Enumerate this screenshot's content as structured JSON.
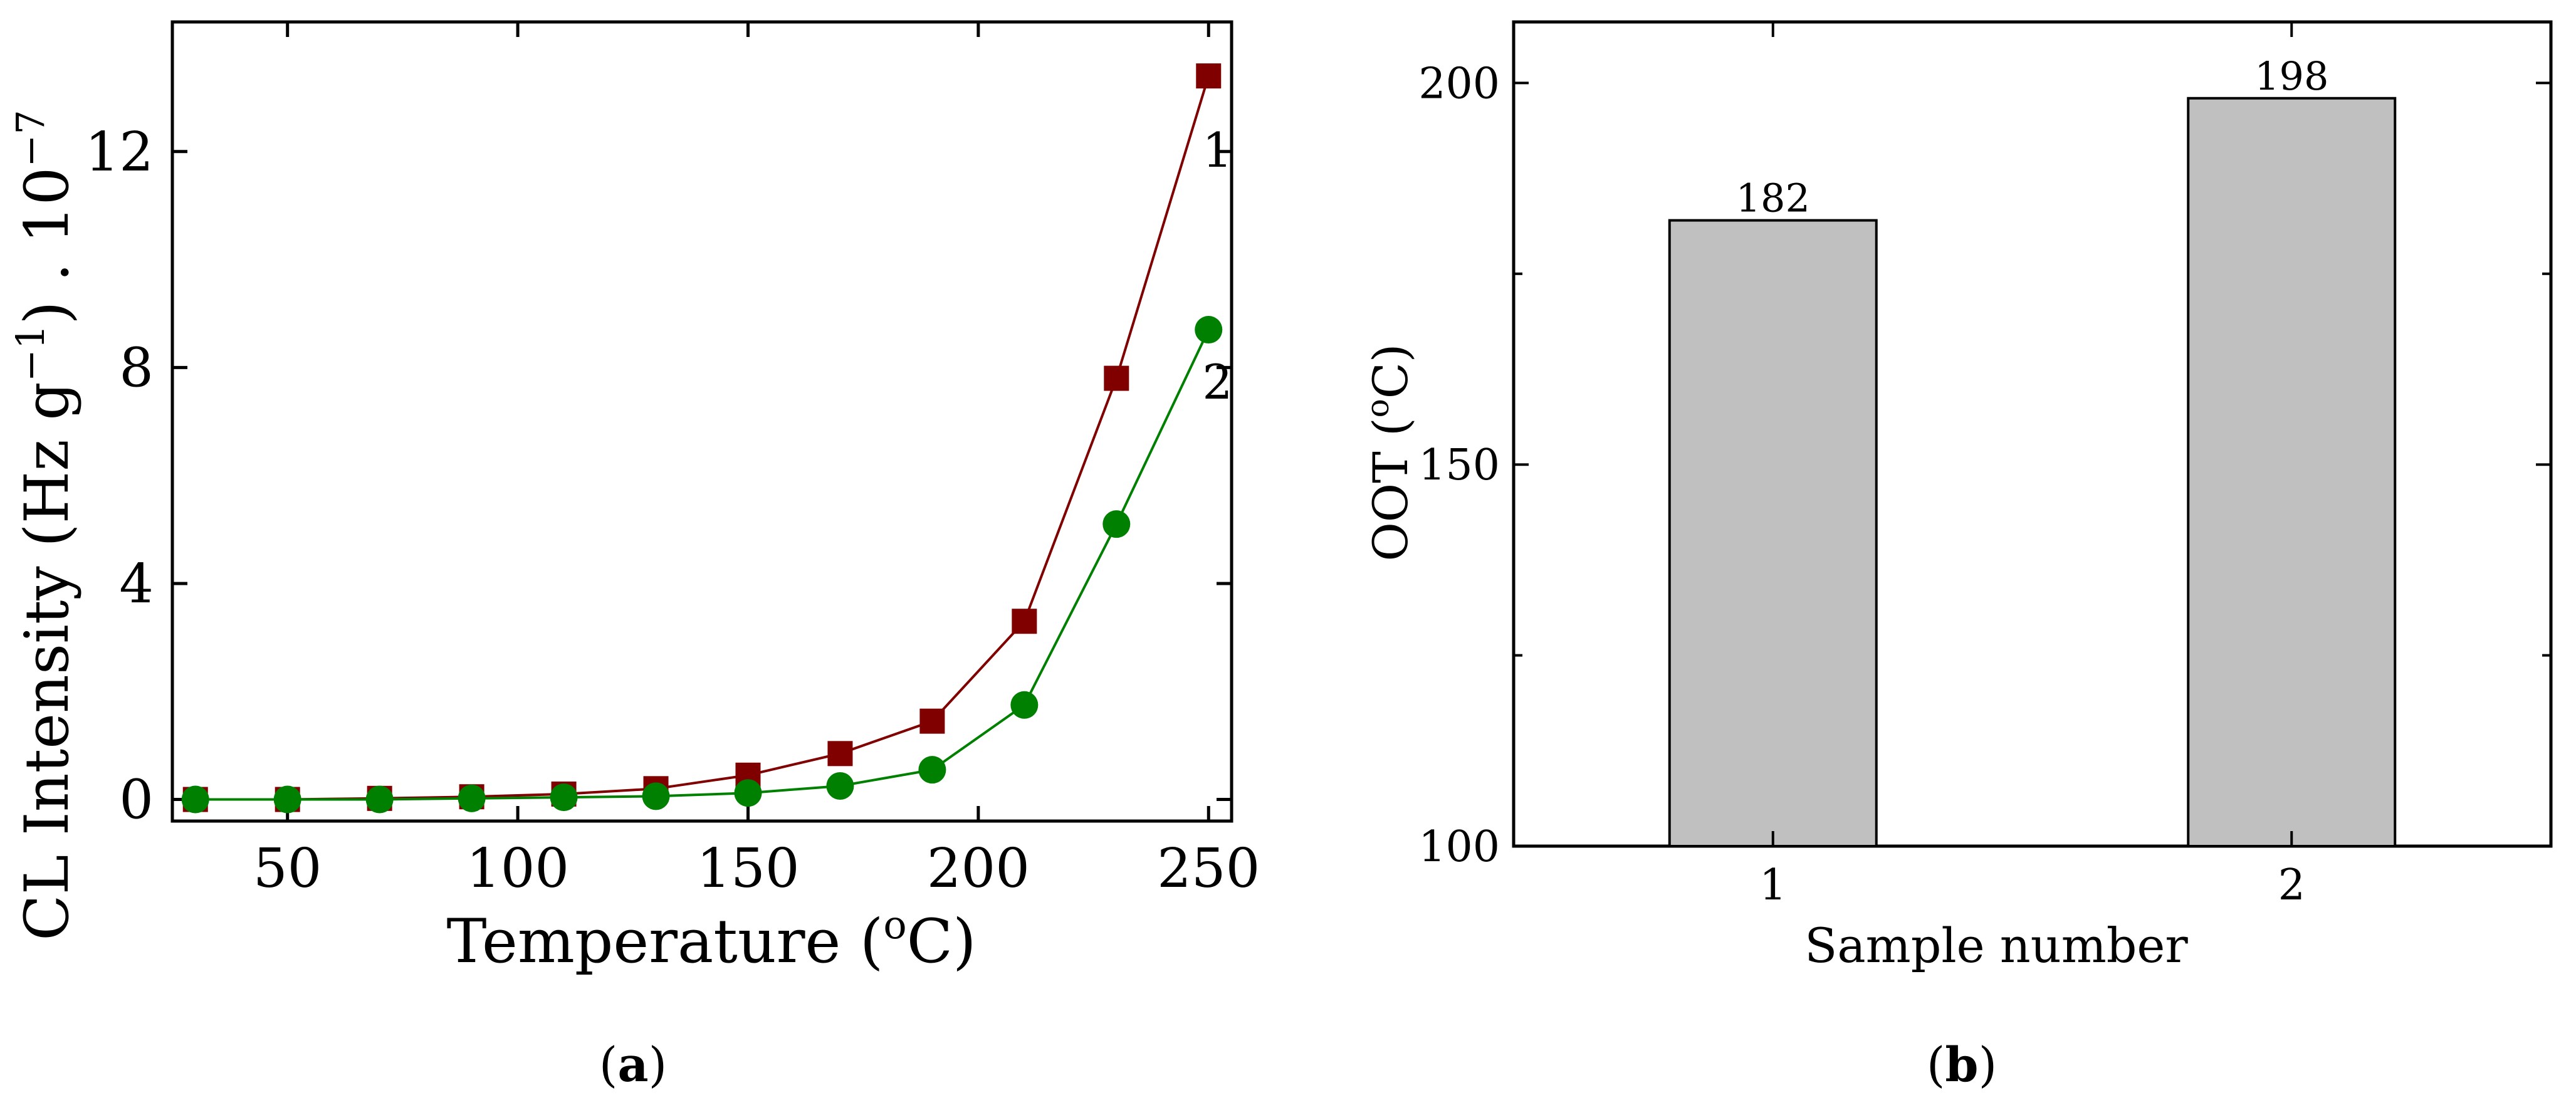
{
  "chart_data": [
    {
      "type": "line",
      "panel_label": "(a)",
      "panel_letter": "a",
      "xlabel": "Temperature (°C)",
      "ylabel": "CL Intensity (Hz g⁻¹) . 10⁻⁷",
      "xlabel_parts": {
        "pre": "Temperature (",
        "sup": "o",
        "post": "C)"
      },
      "ylabel_parts": {
        "pre": "CL Intensity (Hz g",
        "sup1": "−1",
        "mid": ") . 10",
        "sup2": "−7"
      },
      "xlim": [
        25,
        255
      ],
      "ylim": [
        -0.4,
        14.4
      ],
      "xticks": [
        50,
        100,
        150,
        200,
        250
      ],
      "yticks": [
        0,
        4,
        8,
        12
      ],
      "grid": false,
      "series": [
        {
          "name": "1",
          "color": "#800000",
          "marker": "square",
          "x": [
            30,
            50,
            70,
            90,
            110,
            130,
            150,
            170,
            190,
            210,
            230,
            250
          ],
          "y": [
            0.0,
            0.0,
            0.02,
            0.05,
            0.1,
            0.2,
            0.45,
            0.85,
            1.45,
            3.3,
            7.8,
            13.4
          ]
        },
        {
          "name": "2",
          "color": "#008000",
          "marker": "circle",
          "x": [
            30,
            50,
            70,
            90,
            110,
            130,
            150,
            170,
            190,
            210,
            230,
            250
          ],
          "y": [
            0.0,
            0.0,
            0.0,
            0.02,
            0.04,
            0.06,
            0.12,
            0.25,
            0.55,
            1.75,
            5.1,
            8.7
          ]
        }
      ]
    },
    {
      "type": "bar",
      "panel_label": "(b)",
      "panel_letter": "b",
      "xlabel": "Sample number",
      "ylabel": "OOT (°C)",
      "ylabel_parts": {
        "pre": "OOT (",
        "sup": "o",
        "post": "C)"
      },
      "categories": [
        "1",
        "2"
      ],
      "values": [
        182,
        198
      ],
      "data_labels": [
        "182",
        "198"
      ],
      "ylim": [
        100,
        208
      ],
      "yticks": [
        100,
        150,
        200
      ],
      "bar_color": "#c0c0c0",
      "grid": false
    }
  ]
}
